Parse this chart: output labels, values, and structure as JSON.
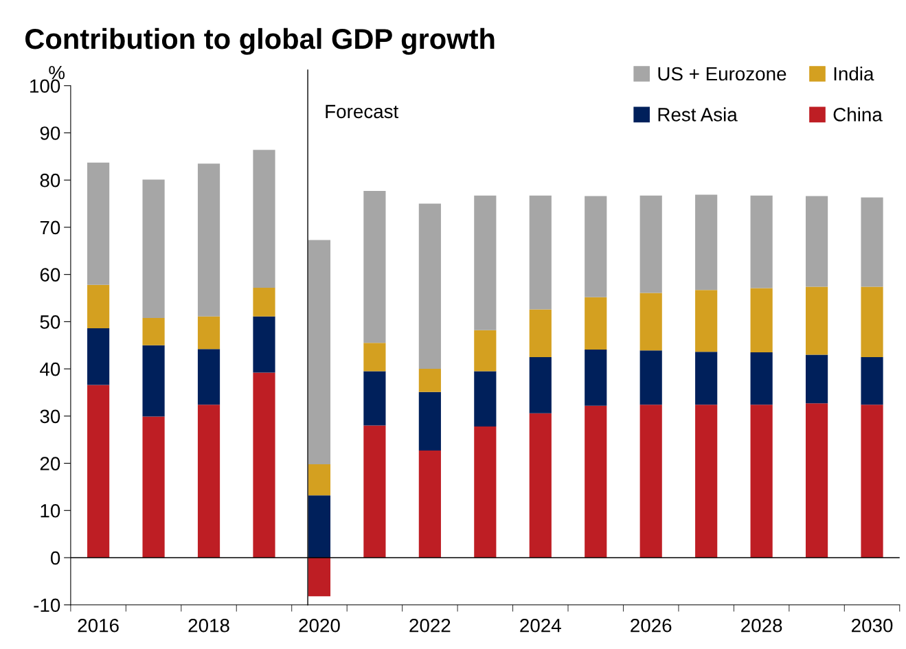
{
  "chart_data": {
    "type": "bar",
    "title": "Contribution to global GDP growth",
    "ylabel": "%",
    "stacked": true,
    "categories": [
      "2016",
      null,
      "2018",
      null,
      "2020",
      null,
      "2022",
      null,
      "2024",
      null,
      "2026",
      null,
      "2028",
      null,
      "2030"
    ],
    "series": [
      {
        "name": "China",
        "color": "#be1e24",
        "values": [
          36.6,
          29.9,
          32.4,
          39.2,
          -8.2,
          28.0,
          22.7,
          27.8,
          30.6,
          32.2,
          32.4,
          32.4,
          32.4,
          32.7,
          32.4
        ]
      },
      {
        "name": "Rest Asia",
        "color": "#00205b",
        "values": [
          12.0,
          15.1,
          11.8,
          11.9,
          13.2,
          11.5,
          12.4,
          11.7,
          11.9,
          11.9,
          11.5,
          11.2,
          11.1,
          10.3,
          10.1
        ]
      },
      {
        "name": "India",
        "color": "#d4a020",
        "values": [
          9.2,
          5.8,
          6.9,
          6.1,
          6.6,
          6.0,
          4.9,
          8.7,
          10.1,
          11.1,
          12.2,
          13.1,
          13.6,
          14.4,
          14.9
        ]
      },
      {
        "name": "US + Eurozone",
        "color": "#a6a6a6",
        "values": [
          25.9,
          29.3,
          32.4,
          29.2,
          47.5,
          32.2,
          35.0,
          28.5,
          24.1,
          21.4,
          20.6,
          20.2,
          19.6,
          19.2,
          18.9
        ]
      }
    ],
    "ylim": [
      -10,
      100
    ],
    "yticks": [
      -10,
      0,
      10,
      20,
      30,
      40,
      50,
      60,
      70,
      80,
      90,
      100
    ],
    "ref_lines": [
      {
        "axis": "y",
        "value": 0,
        "color": "#000000"
      },
      {
        "axis": "x",
        "value": "2020",
        "label": "Forecast",
        "color": "#000000"
      }
    ],
    "grid": false,
    "legend": "top right"
  }
}
